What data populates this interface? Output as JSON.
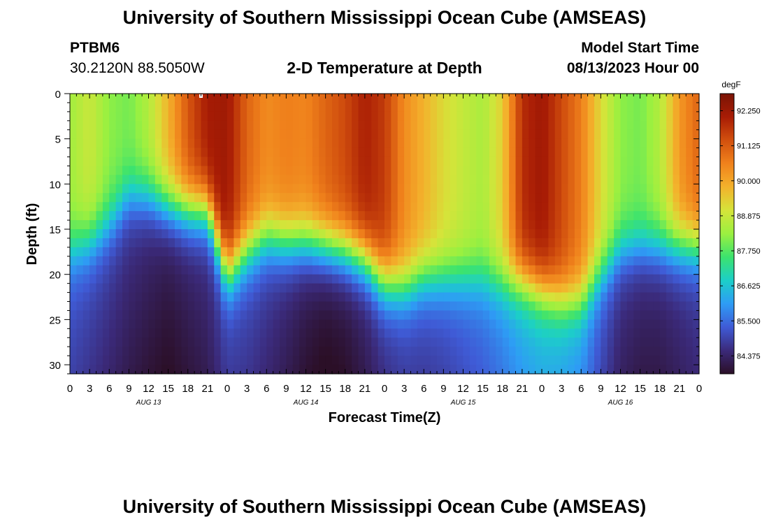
{
  "page": {
    "title": "University of Southern Mississippi Ocean Cube (AMSEAS)",
    "footer_title": "University of Southern Mississippi Ocean Cube (AMSEAS)",
    "station_id": "PTBM6",
    "station_coords": "30.2120N  88.5050W",
    "subtitle": "2-D Temperature at Depth",
    "model_start_label": "Model Start Time",
    "model_start_value": "08/13/2023 Hour 00"
  },
  "chart_data": {
    "type": "heatmap",
    "title": "2-D Temperature at Depth",
    "xlabel": "Forecast Time(Z)",
    "ylabel": "Depth (ft)",
    "units": "degF",
    "x_range_hours": [
      0,
      96
    ],
    "y_range_ft": [
      0,
      31
    ],
    "x_tick_labels": [
      "0",
      "3",
      "6",
      "9",
      "12",
      "15",
      "18",
      "21",
      "0",
      "3",
      "6",
      "9",
      "12",
      "15",
      "18",
      "21",
      "0",
      "3",
      "6",
      "9",
      "12",
      "15",
      "18",
      "21",
      "0",
      "3",
      "6",
      "9",
      "12",
      "15",
      "18",
      "21",
      "0"
    ],
    "y_tick_labels": [
      "0",
      "5",
      "10",
      "15",
      "20",
      "25",
      "30"
    ],
    "y_tick_values": [
      0,
      5,
      10,
      15,
      20,
      25,
      30
    ],
    "date_labels": [
      {
        "label": "AUG 13",
        "hour": 12
      },
      {
        "label": "AUG 14",
        "hour": 36
      },
      {
        "label": "AUG 15",
        "hour": 60
      },
      {
        "label": "AUG 16",
        "hour": 84
      }
    ],
    "colorbar": {
      "unit_label": "degF",
      "min": 83.8,
      "max": 92.8,
      "tick_values": [
        92.25,
        91.125,
        90.0,
        88.875,
        87.75,
        86.625,
        85.5,
        84.375
      ],
      "tick_labels": [
        "92.250",
        "91.125",
        "90.000",
        "88.875",
        "87.750",
        "86.625",
        "85.500",
        "84.375"
      ],
      "colors": [
        "#2b0f27",
        "#3b2a7a",
        "#3f5bd6",
        "#2e9cf5",
        "#1ccfc8",
        "#3ce36e",
        "#9bf040",
        "#d5e43a",
        "#f3b22c",
        "#f0821c",
        "#d2500e",
        "#a81c05",
        "#7a1405"
      ]
    },
    "series_depth_profiles": [
      {
        "hour": 0,
        "thermo_ft": 17.5,
        "surf_temp": 88.4,
        "bottom_temp": 85.2
      },
      {
        "hour": 3,
        "thermo_ft": 16.5,
        "surf_temp": 88.9,
        "bottom_temp": 85.0
      },
      {
        "hour": 6,
        "thermo_ft": 14.5,
        "surf_temp": 88.2,
        "bottom_temp": 84.8
      },
      {
        "hour": 9,
        "thermo_ft": 11.5,
        "surf_temp": 88.0,
        "bottom_temp": 84.6
      },
      {
        "hour": 12,
        "thermo_ft": 11.5,
        "surf_temp": 88.6,
        "bottom_temp": 84.4
      },
      {
        "hour": 15,
        "thermo_ft": 12.5,
        "surf_temp": 89.8,
        "bottom_temp": 84.2
      },
      {
        "hour": 18,
        "thermo_ft": 13.0,
        "surf_temp": 91.2,
        "bottom_temp": 84.4
      },
      {
        "hour": 21,
        "thermo_ft": 13.0,
        "surf_temp": 92.1,
        "bottom_temp": 84.6
      },
      {
        "hour": 24,
        "thermo_ft": 20.0,
        "surf_temp": 92.2,
        "bottom_temp": 85.0
      },
      {
        "hour": 27,
        "thermo_ft": 17.5,
        "surf_temp": 91.0,
        "bottom_temp": 85.0
      },
      {
        "hour": 30,
        "thermo_ft": 16.0,
        "surf_temp": 90.4,
        "bottom_temp": 84.8
      },
      {
        "hour": 33,
        "thermo_ft": 16.5,
        "surf_temp": 90.6,
        "bottom_temp": 84.5
      },
      {
        "hour": 36,
        "thermo_ft": 16.5,
        "surf_temp": 90.5,
        "bottom_temp": 84.2
      },
      {
        "hour": 39,
        "thermo_ft": 17.0,
        "surf_temp": 91.0,
        "bottom_temp": 84.0
      },
      {
        "hour": 42,
        "thermo_ft": 17.5,
        "surf_temp": 91.4,
        "bottom_temp": 84.1
      },
      {
        "hour": 45,
        "thermo_ft": 18.5,
        "surf_temp": 92.0,
        "bottom_temp": 84.4
      },
      {
        "hour": 48,
        "thermo_ft": 21.0,
        "surf_temp": 91.6,
        "bottom_temp": 84.8
      },
      {
        "hour": 51,
        "thermo_ft": 21.5,
        "surf_temp": 90.4,
        "bottom_temp": 85.0
      },
      {
        "hour": 54,
        "thermo_ft": 20.5,
        "surf_temp": 89.8,
        "bottom_temp": 85.0
      },
      {
        "hour": 57,
        "thermo_ft": 20.5,
        "surf_temp": 89.2,
        "bottom_temp": 85.1
      },
      {
        "hour": 60,
        "thermo_ft": 20.5,
        "surf_temp": 88.8,
        "bottom_temp": 85.3
      },
      {
        "hour": 63,
        "thermo_ft": 20.5,
        "surf_temp": 88.5,
        "bottom_temp": 85.5
      },
      {
        "hour": 66,
        "thermo_ft": 21.0,
        "surf_temp": 89.4,
        "bottom_temp": 85.8
      },
      {
        "hour": 69,
        "thermo_ft": 21.0,
        "surf_temp": 91.8,
        "bottom_temp": 86.2
      },
      {
        "hour": 72,
        "thermo_ft": 22.0,
        "surf_temp": 92.2,
        "bottom_temp": 86.4
      },
      {
        "hour": 75,
        "thermo_ft": 23.0,
        "surf_temp": 91.4,
        "bottom_temp": 86.3
      },
      {
        "hour": 78,
        "thermo_ft": 23.0,
        "surf_temp": 90.6,
        "bottom_temp": 86.0
      },
      {
        "hour": 81,
        "thermo_ft": 20.0,
        "surf_temp": 89.2,
        "bottom_temp": 85.2
      },
      {
        "hour": 84,
        "thermo_ft": 17.5,
        "surf_temp": 88.2,
        "bottom_temp": 84.6
      },
      {
        "hour": 87,
        "thermo_ft": 17.0,
        "surf_temp": 88.0,
        "bottom_temp": 84.4
      },
      {
        "hour": 90,
        "thermo_ft": 17.0,
        "surf_temp": 88.6,
        "bottom_temp": 84.4
      },
      {
        "hour": 93,
        "thermo_ft": 17.0,
        "surf_temp": 90.2,
        "bottom_temp": 84.6
      },
      {
        "hour": 96,
        "thermo_ft": 17.0,
        "surf_temp": 91.0,
        "bottom_temp": 84.8
      }
    ]
  }
}
